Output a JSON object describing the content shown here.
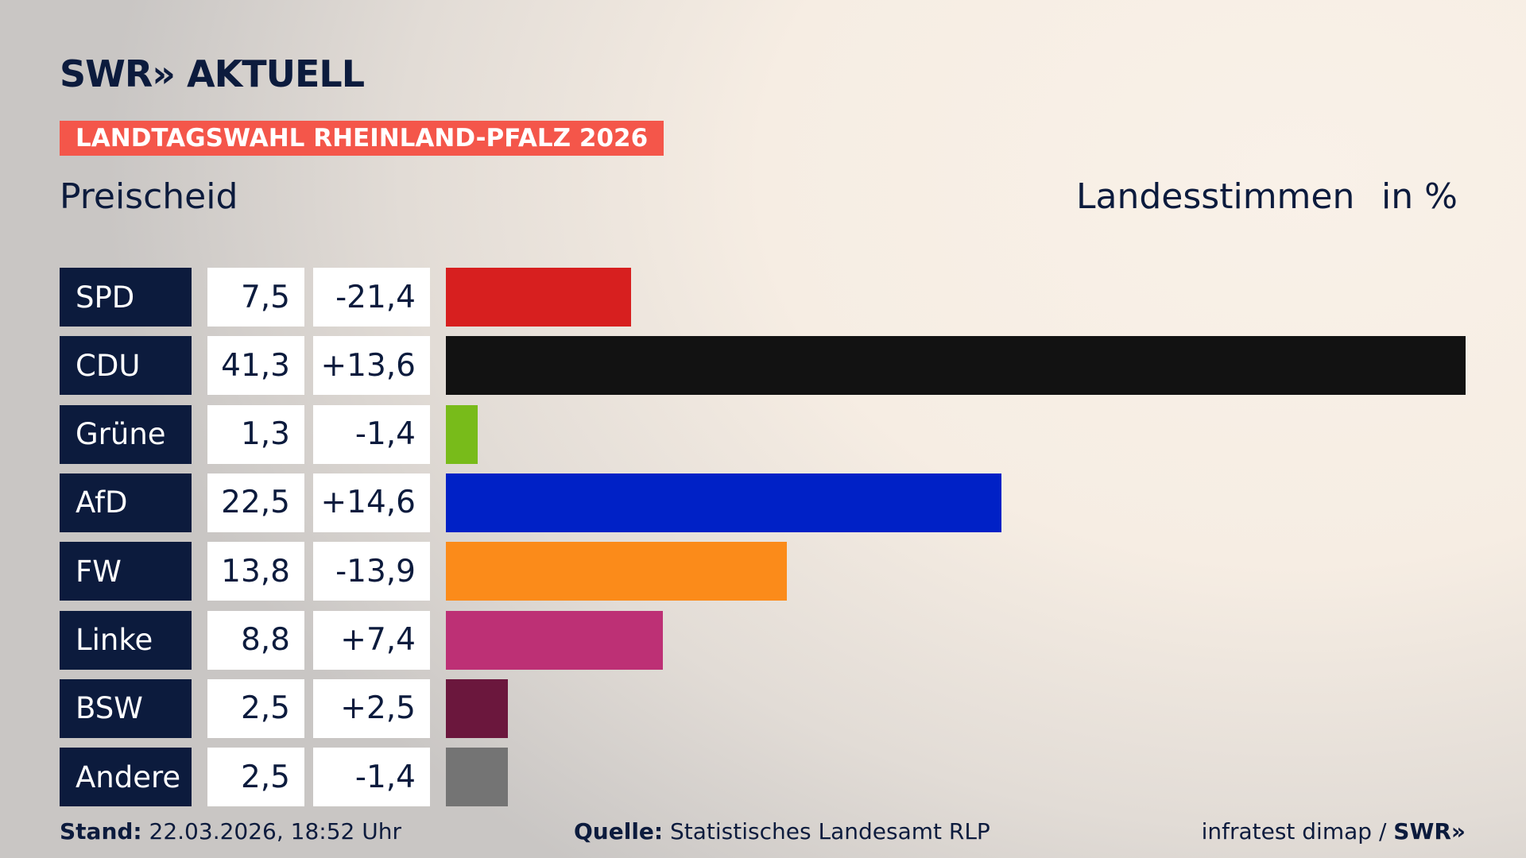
{
  "header": {
    "logo": "SWR» AKTUELL",
    "banner": "LANDTAGSWAHL RHEINLAND-PFALZ 2026"
  },
  "chart_data": {
    "type": "bar",
    "orientation": "horizontal",
    "title": "Preischeid",
    "subtitle": "Landesstimmen",
    "unit": "in %",
    "categories": [
      "SPD",
      "CDU",
      "Grüne",
      "AfD",
      "FW",
      "Linke",
      "BSW",
      "Andere"
    ],
    "values": [
      7.5,
      41.3,
      1.3,
      22.5,
      13.8,
      8.8,
      2.5,
      2.5
    ],
    "value_labels": [
      "7,5",
      "41,3",
      "1,3",
      "22,5",
      "13,8",
      "8,8",
      "2,5",
      "2,5"
    ],
    "changes": [
      -21.4,
      13.6,
      -1.4,
      14.6,
      -13.9,
      7.4,
      2.5,
      -1.4
    ],
    "change_labels": [
      "-21,4",
      "+13,6",
      "-1,4",
      "+14,6",
      "-13,9",
      "+7,4",
      "+2,5",
      "-1,4"
    ],
    "colors": [
      "#d71f1f",
      "#121212",
      "#78bb1a",
      "#0021c6",
      "#fb8b1a",
      "#bd3075",
      "#6b173d",
      "#747474"
    ]
  },
  "footer": {
    "stand_label": "Stand:",
    "stand": "22.03.2026, 18:52 Uhr",
    "source_label": "Quelle:",
    "source": "Statistisches Landesamt RLP",
    "credit": "infratest dimap /",
    "credit_logo": "SWR»"
  }
}
